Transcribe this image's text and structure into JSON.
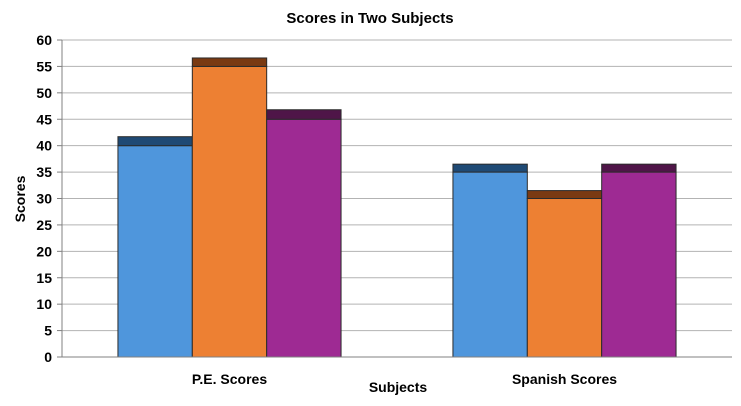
{
  "chart_data": {
    "type": "bar",
    "title": "Scores in Two Subjects",
    "xlabel": "Subjects",
    "ylabel": "Scores",
    "categories": [
      "P.E. Scores",
      "Spanish Scores"
    ],
    "series": [
      {
        "values": [
          40,
          35
        ],
        "cap": [
          1.7,
          1.5
        ],
        "color": "#4f96dc",
        "cap_color": "#1f4a75"
      },
      {
        "values": [
          55,
          30
        ],
        "cap": [
          1.6,
          1.5
        ],
        "color": "#ed8033",
        "cap_color": "#7a3a12"
      },
      {
        "values": [
          45,
          35
        ],
        "cap": [
          1.8,
          1.5
        ],
        "color": "#9e2a93",
        "cap_color": "#4f1548"
      }
    ],
    "ylim": [
      0,
      60
    ],
    "yticks": [
      0,
      5,
      10,
      15,
      20,
      25,
      30,
      35,
      40,
      45,
      50,
      55,
      60
    ],
    "grid": true,
    "legend": false
  }
}
